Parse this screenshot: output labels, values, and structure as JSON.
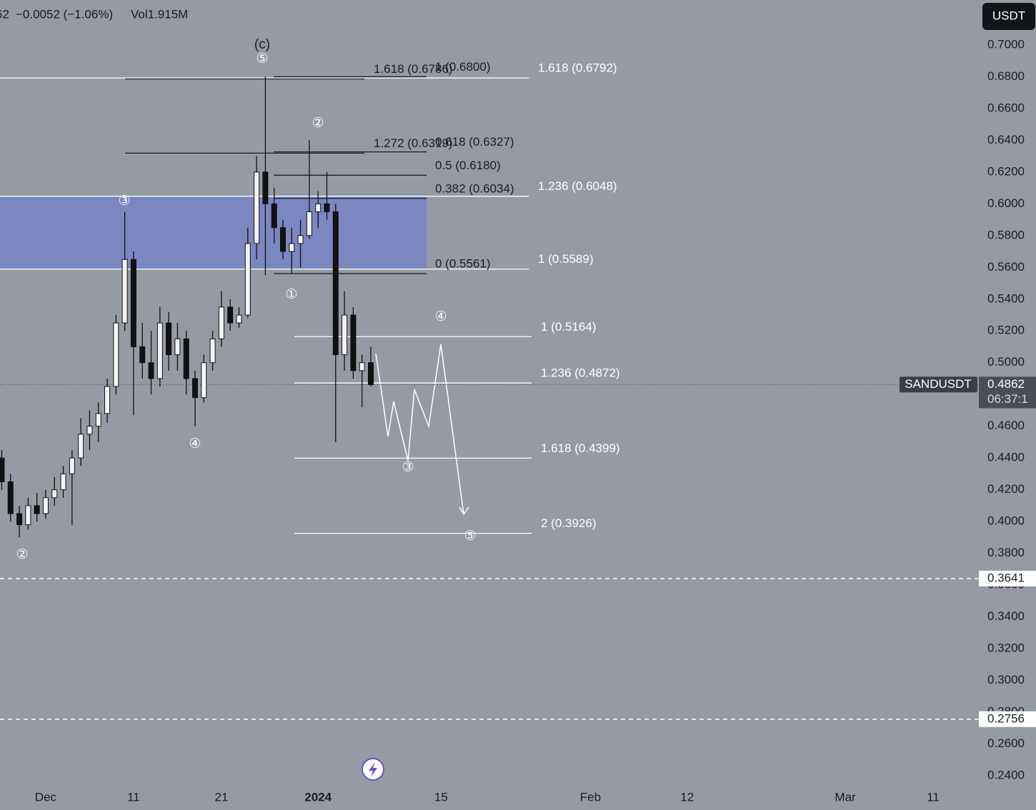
{
  "chart_data": {
    "type": "candlestick",
    "header": {
      "price": "62",
      "change": "−0.0052 (−1.06%)",
      "volume": "Vol1.915M"
    },
    "currency": "USDT",
    "symbol": "SANDUSDT",
    "last_price": 0.4862,
    "countdown": "06:37:1",
    "up_color": "#f4f4f4",
    "down_color": "#111111",
    "zone_color": "#7584c6",
    "x": [
      -5,
      -4,
      -3,
      -2,
      -1,
      0,
      1,
      2,
      3,
      4,
      5,
      6,
      7,
      8,
      9,
      10,
      11,
      12,
      13,
      14,
      15,
      16,
      17,
      18,
      19,
      20,
      21,
      22,
      23,
      24,
      25,
      26,
      27,
      28,
      29,
      30,
      31,
      32,
      33,
      34,
      35,
      36,
      37
    ],
    "open": [
      0.44,
      0.425,
      0.405,
      0.398,
      0.41,
      0.405,
      0.415,
      0.42,
      0.43,
      0.44,
      0.455,
      0.46,
      0.468,
      0.485,
      0.525,
      0.565,
      0.51,
      0.5,
      0.49,
      0.525,
      0.505,
      0.515,
      0.49,
      0.478,
      0.5,
      0.515,
      0.535,
      0.525,
      0.53,
      0.575,
      0.62,
      0.6,
      0.585,
      0.57,
      0.575,
      0.58,
      0.595,
      0.6,
      0.595,
      0.505,
      0.53,
      0.495,
      0.5
    ],
    "high": [
      0.445,
      0.43,
      0.41,
      0.415,
      0.418,
      0.42,
      0.428,
      0.435,
      0.445,
      0.465,
      0.47,
      0.475,
      0.49,
      0.53,
      0.595,
      0.57,
      0.525,
      0.52,
      0.535,
      0.532,
      0.525,
      0.52,
      0.495,
      0.505,
      0.52,
      0.545,
      0.54,
      0.535,
      0.585,
      0.63,
      0.68,
      0.61,
      0.59,
      0.585,
      0.59,
      0.64,
      0.608,
      0.62,
      0.6,
      0.545,
      0.535,
      0.505,
      0.51
    ],
    "low": [
      0.42,
      0.4,
      0.39,
      0.395,
      0.4,
      0.402,
      0.41,
      0.415,
      0.398,
      0.435,
      0.445,
      0.45,
      0.462,
      0.48,
      0.52,
      0.467,
      0.49,
      0.48,
      0.485,
      0.495,
      0.495,
      0.48,
      0.46,
      0.475,
      0.495,
      0.51,
      0.52,
      0.522,
      0.528,
      0.565,
      0.555,
      0.575,
      0.565,
      0.556,
      0.56,
      0.578,
      0.585,
      0.59,
      0.45,
      0.495,
      0.49,
      0.472,
      0.485
    ],
    "close": [
      0.425,
      0.405,
      0.398,
      0.41,
      0.405,
      0.415,
      0.42,
      0.43,
      0.44,
      0.455,
      0.46,
      0.468,
      0.485,
      0.525,
      0.565,
      0.51,
      0.5,
      0.49,
      0.525,
      0.505,
      0.515,
      0.49,
      0.478,
      0.5,
      0.515,
      0.535,
      0.525,
      0.53,
      0.575,
      0.62,
      0.6,
      0.585,
      0.57,
      0.575,
      0.58,
      0.595,
      0.6,
      0.595,
      0.505,
      0.53,
      0.495,
      0.5,
      0.4862
    ],
    "xlim": [
      -5.2,
      106.2
    ],
    "ylim": [
      0.2337,
      0.7283
    ],
    "xticks": [
      {
        "value": 0,
        "label": "Dec"
      },
      {
        "value": 10,
        "label": "11"
      },
      {
        "value": 20,
        "label": "21"
      },
      {
        "value": 31,
        "label": "2024"
      },
      {
        "value": 45,
        "label": "15"
      },
      {
        "value": 62,
        "label": "Feb"
      },
      {
        "value": 73,
        "label": "12"
      },
      {
        "value": 91,
        "label": "Mar"
      },
      {
        "value": 101,
        "label": "11"
      }
    ],
    "yticks": [
      {
        "value": 0.7,
        "label": "0.7000"
      },
      {
        "value": 0.68,
        "label": "0.6800"
      },
      {
        "value": 0.66,
        "label": "0.6600"
      },
      {
        "value": 0.64,
        "label": "0.6400"
      },
      {
        "value": 0.62,
        "label": "0.6200"
      },
      {
        "value": 0.6,
        "label": "0.6000"
      },
      {
        "value": 0.58,
        "label": "0.5800"
      },
      {
        "value": 0.56,
        "label": "0.5600"
      },
      {
        "value": 0.54,
        "label": "0.5400"
      },
      {
        "value": 0.52,
        "label": "0.5200"
      },
      {
        "value": 0.5,
        "label": "0.5000"
      },
      {
        "value": 0.48,
        "label": "0.4800"
      },
      {
        "value": 0.46,
        "label": "0.4600"
      },
      {
        "value": 0.44,
        "label": "0.4400"
      },
      {
        "value": 0.42,
        "label": "0.4200"
      },
      {
        "value": 0.4,
        "label": "0.4000"
      },
      {
        "value": 0.38,
        "label": "0.3800"
      },
      {
        "value": 0.36,
        "label": "0.3600"
      },
      {
        "value": 0.34,
        "label": "0.3400"
      },
      {
        "value": 0.32,
        "label": "0.3200"
      },
      {
        "value": 0.3,
        "label": "0.3000"
      },
      {
        "value": 0.28,
        "label": "0.2800"
      },
      {
        "value": 0.26,
        "label": "0.2600"
      },
      {
        "value": 0.24,
        "label": "0.2400"
      }
    ],
    "alert_levels": [
      0.3641,
      0.2756
    ],
    "fib_sets": [
      {
        "color": "#ffffff",
        "levels": [
          {
            "value": 0.6792,
            "label": "1.618 (0.6792)"
          },
          {
            "value": 0.6048,
            "label": "1.236 (0.6048)"
          },
          {
            "value": 0.5589,
            "label": "1 (0.5589)"
          }
        ]
      },
      {
        "color": "#1c1d21",
        "levels": [
          {
            "value": 0.68,
            "label": "1 (0.6800)"
          },
          {
            "value": 0.6327,
            "label": "0.618 (0.6327)"
          },
          {
            "value": 0.618,
            "label": "0.5 (0.6180)"
          },
          {
            "value": 0.6034,
            "label": "0.382 (0.6034)"
          },
          {
            "value": 0.5561,
            "label": "0 (0.5561)"
          }
        ]
      },
      {
        "color": "#1c1d21",
        "levels": [
          {
            "value": 0.6786,
            "label": "1.618 (0.6786)"
          },
          {
            "value": 0.6319,
            "label": "1.272 (0.6319)"
          }
        ]
      },
      {
        "color": "#ffffff",
        "levels": [
          {
            "value": 0.5164,
            "label": "1 (0.5164)"
          },
          {
            "value": 0.4872,
            "label": "1.236 (0.4872)"
          },
          {
            "value": 0.4399,
            "label": "1.618 (0.4399)"
          },
          {
            "value": 0.3926,
            "label": "2 (0.3926)"
          }
        ]
      }
    ],
    "wave_labels": [
      "(c)",
      "⑤",
      "③",
      "②",
      "④",
      "②",
      "①",
      "④",
      "③",
      "⑤"
    ]
  }
}
